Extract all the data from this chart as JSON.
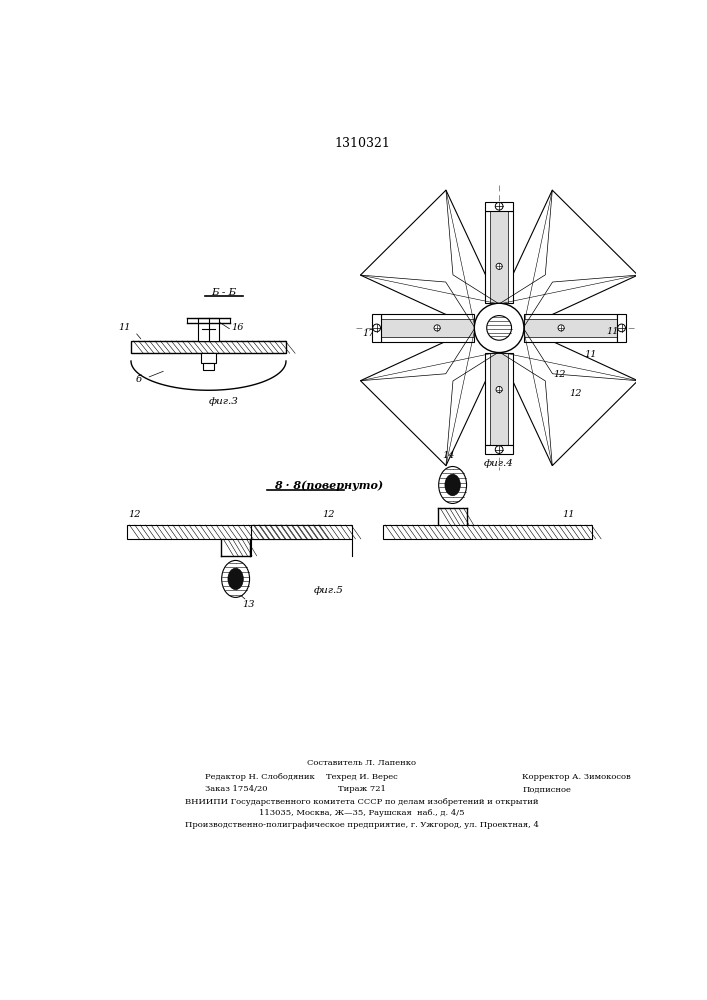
{
  "patent_number": "1310321",
  "bg_color": "#ffffff",
  "line_color": "#000000",
  "footer": {
    "line1": "Составитель Л. Лапенко",
    "line2_left": "Редактор Н. Слободяник",
    "line2_mid": "Техред И. Верес",
    "line2_right": "Корректор А. Зимокосов",
    "line3_left": "Заказ 1754/20",
    "line3_mid": "Тираж 721",
    "line3_right": "Подписное",
    "line4": "ВНИИПИ Государственного комитета СССР по делам изобретений и открытий",
    "line5": "113035, Москва, Ж—35, Раушская  наб., д. 4/5",
    "line6": "Производственно-полиграфическое предприятие, г. Ужгород, ул. Проектная, 4"
  }
}
